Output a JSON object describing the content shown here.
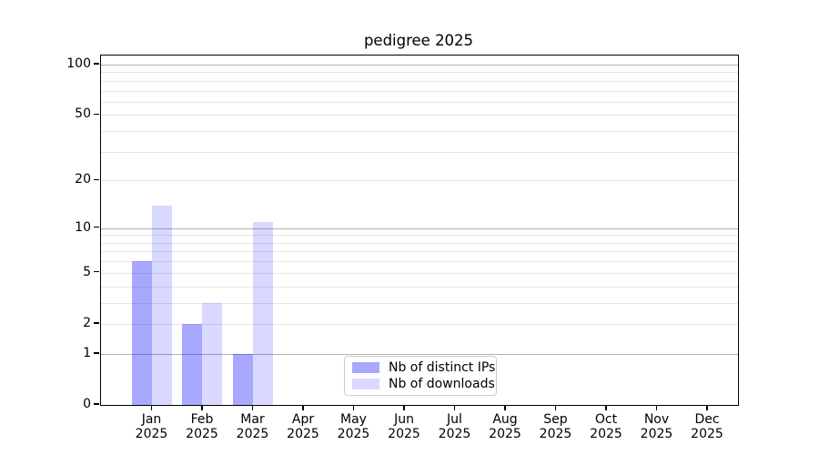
{
  "chart_data": {
    "type": "bar",
    "title": "pedigree 2025",
    "categories": [
      "Jan",
      "Feb",
      "Mar",
      "Apr",
      "May",
      "Jun",
      "Jul",
      "Aug",
      "Sep",
      "Oct",
      "Nov",
      "Dec"
    ],
    "x_tick_year": "2025",
    "series": [
      {
        "name": "Nb of distinct IPs",
        "color": "rgba(0,0,255,0.34)",
        "values": [
          6,
          2,
          1,
          0,
          0,
          0,
          0,
          0,
          0,
          0,
          0,
          0
        ]
      },
      {
        "name": "Nb of downloads",
        "color": "rgba(0,0,255,0.15)",
        "values": [
          14,
          3,
          11,
          0,
          0,
          0,
          0,
          0,
          0,
          0,
          0,
          0
        ]
      }
    ],
    "yscale": "log1p",
    "ylim": [
      0,
      113
    ],
    "yticks": [
      0,
      1,
      2,
      5,
      10,
      20,
      50,
      100
    ],
    "grid": {
      "orientation": "horizontal",
      "major_ticks": [
        1,
        10,
        100
      ],
      "minor_ticks": [
        2,
        3,
        4,
        5,
        6,
        7,
        8,
        9,
        20,
        30,
        40,
        50,
        60,
        70,
        80,
        90
      ],
      "major_color": "#b1b1b1",
      "minor_color": "#e7e7e7"
    },
    "legend_position": "lower-center-inside",
    "axis_color": "#000000",
    "background_color": "#ffffff"
  }
}
